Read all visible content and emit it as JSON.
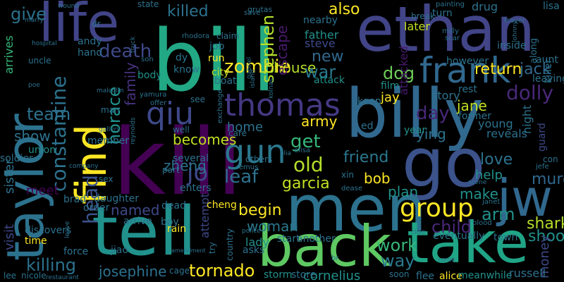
{
  "words": [
    {
      "text": "bill",
      "color": "#22a884"
    },
    {
      "text": "kill",
      "color": "#440154"
    },
    {
      "text": "billy",
      "color": "#31688e"
    },
    {
      "text": "ethan",
      "color": "#414487"
    },
    {
      "text": "go",
      "color": "#3b528b"
    },
    {
      "text": "men",
      "color": "#2c728e"
    },
    {
      "text": "tell",
      "color": "#21918c"
    },
    {
      "text": "back",
      "color": "#5ec962"
    },
    {
      "text": "take",
      "color": "#20a486"
    },
    {
      "text": "taylor",
      "color": "#2c728e"
    },
    {
      "text": "find",
      "color": "#fde725"
    },
    {
      "text": "life",
      "color": "#414487"
    },
    {
      "text": "jw",
      "color": "#31688e"
    },
    {
      "text": "frank",
      "color": "#31688e"
    },
    {
      "text": "thomas",
      "color": "#443983"
    },
    {
      "text": "qiu",
      "color": "#3e4989"
    },
    {
      "text": "group",
      "color": "#fde725"
    },
    {
      "text": "gun",
      "color": "#2a788e"
    },
    {
      "text": "constantine",
      "color": "#2c728e"
    },
    {
      "text": "head",
      "color": "#3b528b"
    },
    {
      "text": "horace",
      "color": "#21918c"
    },
    {
      "text": "family",
      "color": "#46327e"
    },
    {
      "text": "death",
      "color": "#3e4989"
    },
    {
      "text": "killed",
      "color": "#2c728e"
    },
    {
      "text": "house",
      "color": "#b5de2b"
    },
    {
      "text": "also",
      "color": "#fde725"
    },
    {
      "text": "return",
      "color": "#fde725"
    },
    {
      "text": "zombie",
      "color": "#fde725"
    },
    {
      "text": "stephen",
      "color": "#b5de2b"
    },
    {
      "text": "escape",
      "color": "#481a6c"
    },
    {
      "text": "new",
      "color": "#31688e"
    },
    {
      "text": "war",
      "color": "#2a788e"
    },
    {
      "text": "dog",
      "color": "#6ece58"
    },
    {
      "text": "jack",
      "color": "#31688e"
    },
    {
      "text": "dolly",
      "color": "#482878"
    },
    {
      "text": "team",
      "color": "#2c728e"
    },
    {
      "text": "show",
      "color": "#2c728e"
    },
    {
      "text": "named",
      "color": "#3e4989"
    },
    {
      "text": "jo",
      "color": "#3e4989"
    },
    {
      "text": "leaf",
      "color": "#2c728e"
    },
    {
      "text": "old",
      "color": "#b5de2b"
    },
    {
      "text": "get",
      "color": "#35b779"
    },
    {
      "text": "friend",
      "color": "#2a788e"
    },
    {
      "text": "bob",
      "color": "#fde725"
    },
    {
      "text": "garcia",
      "color": "#c2df23"
    },
    {
      "text": "begin",
      "color": "#fde725"
    },
    {
      "text": "woman",
      "color": "#2a788e"
    },
    {
      "text": "work",
      "color": "#35b779"
    },
    {
      "text": "way",
      "color": "#2a788e"
    },
    {
      "text": "killing",
      "color": "#2c728e"
    },
    {
      "text": "josephine",
      "color": "#2c728e"
    },
    {
      "text": "tornado",
      "color": "#fde725"
    },
    {
      "text": "shark",
      "color": "#b5de2b"
    },
    {
      "text": "shoot",
      "color": "#21918c"
    },
    {
      "text": "murder",
      "color": "#31688e"
    },
    {
      "text": "love",
      "color": "#2c728e"
    },
    {
      "text": "make",
      "color": "#21918c"
    },
    {
      "text": "arm",
      "color": "#21918c"
    },
    {
      "text": "child",
      "color": "#482878"
    },
    {
      "text": "plan",
      "color": "#21918c"
    },
    {
      "text": "zheng",
      "color": "#2c728e"
    },
    {
      "text": "becomes",
      "color": "#c2df23"
    },
    {
      "text": "army",
      "color": "#fde725"
    },
    {
      "text": "home",
      "color": "#2c728e"
    },
    {
      "text": "day",
      "color": "#482878"
    },
    {
      "text": "ying",
      "color": "#2c728e"
    },
    {
      "text": "jane",
      "color": "#c2df23"
    },
    {
      "text": "jay",
      "color": "#fde725"
    },
    {
      "text": "father",
      "color": "#21918c"
    },
    {
      "text": "steve",
      "color": "#3e4989"
    },
    {
      "text": "later",
      "color": "#c2df23"
    },
    {
      "text": "give",
      "color": "#2c728e"
    },
    {
      "text": "meet",
      "color": "#440154"
    },
    {
      "text": "visit",
      "color": "#3e4989"
    },
    {
      "text": "sister",
      "color": "#2c728e"
    },
    {
      "text": "arrives",
      "color": "#35b779"
    },
    {
      "text": "help",
      "color": "#21918c"
    },
    {
      "text": "money",
      "color": "#3e4989"
    },
    {
      "text": "night",
      "color": "#2c728e"
    },
    {
      "text": "cornelius",
      "color": "#21918c"
    },
    {
      "text": "attempt",
      "color": "#3e4989"
    },
    {
      "text": "lady",
      "color": "#21918c"
    },
    {
      "text": "attacked",
      "color": "#481a6c"
    },
    {
      "text": "story",
      "color": "#2c728e"
    },
    {
      "text": "rest",
      "color": "#2c728e"
    },
    {
      "text": "former",
      "color": "#2c728e"
    },
    {
      "text": "young",
      "color": "#2c728e"
    },
    {
      "text": "reveals",
      "color": "#2c728e"
    },
    {
      "text": "guard",
      "color": "#3e4989"
    },
    {
      "text": "killer",
      "color": "#2c728e"
    },
    {
      "text": "along",
      "color": "#2c728e"
    },
    {
      "text": "aunt",
      "color": "#2c728e"
    },
    {
      "text": "leaving",
      "color": "#2c728e"
    },
    {
      "text": "attack",
      "color": "#21918c"
    },
    {
      "text": "film",
      "color": "#21918c"
    },
    {
      "text": "keep",
      "color": "#2c728e"
    },
    {
      "text": "year",
      "color": "#21918c"
    },
    {
      "text": "ed",
      "color": "#2c728e"
    },
    {
      "text": "city",
      "color": "#c2df23"
    },
    {
      "text": "boat",
      "color": "#2c728e"
    },
    {
      "text": "run",
      "color": "#fde725"
    },
    {
      "text": "job",
      "color": "#2c728e"
    },
    {
      "text": "know",
      "color": "#2c728e"
    },
    {
      "text": "dy",
      "color": "#2c728e"
    },
    {
      "text": "body",
      "color": "#21918c"
    },
    {
      "text": "hand",
      "color": "#2c728e"
    },
    {
      "text": "andy",
      "color": "#2c728e"
    },
    {
      "text": "uncle",
      "color": "#2c728e"
    },
    {
      "text": "soldier",
      "color": "#2c728e"
    },
    {
      "text": "union",
      "color": "#21918c"
    },
    {
      "text": "member",
      "color": "#2c728e"
    },
    {
      "text": "daughter",
      "color": "#2c728e"
    },
    {
      "text": "order",
      "color": "#2c728e"
    },
    {
      "text": "brad",
      "color": "#2c728e"
    },
    {
      "text": "arrive",
      "color": "#2c728e"
    },
    {
      "text": "discovers",
      "color": "#2c728e"
    },
    {
      "text": "time",
      "color": "#fde725"
    },
    {
      "text": "force",
      "color": "#2c728e"
    },
    {
      "text": "jiao",
      "color": "#2c728e"
    },
    {
      "text": "rain",
      "color": "#fde725"
    },
    {
      "text": "boy",
      "color": "#2c728e"
    },
    {
      "text": "dead",
      "color": "#2c728e"
    },
    {
      "text": "cheng",
      "color": "#fde725"
    },
    {
      "text": "enters",
      "color": "#2c728e"
    },
    {
      "text": "several",
      "color": "#2c728e"
    },
    {
      "text": "part",
      "color": "#2c728e"
    },
    {
      "text": "storm",
      "color": "#21918c"
    },
    {
      "text": "store",
      "color": "#2c728e"
    },
    {
      "text": "start",
      "color": "#2c728e"
    },
    {
      "text": "another",
      "color": "#2c728e"
    },
    {
      "text": "asks",
      "color": "#2c728e"
    },
    {
      "text": "flee",
      "color": "#2c728e"
    },
    {
      "text": "alice",
      "color": "#fde725"
    },
    {
      "text": "meanwhile",
      "color": "#21918c"
    },
    {
      "text": "russell",
      "color": "#2c728e"
    },
    {
      "text": "eventually",
      "color": "#2c728e"
    },
    {
      "text": "town",
      "color": "#2c728e"
    },
    {
      "text": "nearby",
      "color": "#2c728e"
    },
    {
      "text": "however",
      "color": "#2c728e"
    },
    {
      "text": "inside",
      "color": "#2c728e"
    },
    {
      "text": "turn",
      "color": "#2c728e"
    },
    {
      "text": "drug",
      "color": "#2c728e"
    },
    {
      "text": "state",
      "color": "#2c728e"
    },
    {
      "text": "lisa",
      "color": "#2c728e"
    },
    {
      "text": "lee",
      "color": "#2c728e"
    },
    {
      "text": "nicole",
      "color": "#2c728e"
    },
    {
      "text": "soon",
      "color": "#2c728e"
    },
    {
      "text": "jefe",
      "color": "#2c728e"
    },
    {
      "text": "con",
      "color": "#2c728e"
    },
    {
      "text": "wound",
      "color": "#2c728e"
    },
    {
      "text": "dr",
      "color": "#2c728e"
    },
    {
      "text": "marry",
      "color": "#2c728e"
    },
    {
      "text": "hospital",
      "color": "#2c728e"
    },
    {
      "text": "poe",
      "color": "#2c728e"
    },
    {
      "text": "malcolm",
      "color": "#2c728e"
    },
    {
      "text": "man",
      "color": "#2c728e"
    },
    {
      "text": "gallery",
      "color": "#2c728e"
    },
    {
      "text": "reynolds",
      "color": "#2c728e"
    },
    {
      "text": "company",
      "color": "#2c728e"
    },
    {
      "text": "sex",
      "color": "#2c728e"
    },
    {
      "text": "others",
      "color": "#2c728e"
    },
    {
      "text": "remus",
      "color": "#2c728e"
    },
    {
      "text": "elisa",
      "color": "#2c728e"
    },
    {
      "text": "elia",
      "color": "#2c728e"
    },
    {
      "text": "xin",
      "color": "#2c728e"
    },
    {
      "text": "dease",
      "color": "#2c728e"
    },
    {
      "text": "scene",
      "color": "#2c728e"
    },
    {
      "text": "gabriel",
      "color": "#2c728e"
    },
    {
      "text": "island",
      "color": "#2c728e"
    },
    {
      "text": "kolnas",
      "color": "#2c728e"
    },
    {
      "text": "johnny",
      "color": "#2c728e"
    },
    {
      "text": "milly",
      "color": "#2c728e"
    },
    {
      "text": "scar",
      "color": "#2c728e"
    },
    {
      "text": "travel",
      "color": "#2c728e"
    },
    {
      "text": "painting",
      "color": "#2c728e"
    },
    {
      "text": "break",
      "color": "#2c728e"
    },
    {
      "text": "grutas",
      "color": "#2c728e"
    },
    {
      "text": "save",
      "color": "#2c728e"
    },
    {
      "text": "rhodora",
      "color": "#2c728e"
    },
    {
      "text": "claim",
      "color": "#2c728e"
    },
    {
      "text": "truck",
      "color": "#2c728e"
    },
    {
      "text": "son",
      "color": "#2c728e"
    },
    {
      "text": "yamura",
      "color": "#2c728e"
    },
    {
      "text": "offer",
      "color": "#2c728e"
    },
    {
      "text": "see",
      "color": "#2c728e"
    },
    {
      "text": "exchange",
      "color": "#2c728e"
    },
    {
      "text": "well",
      "color": "#2c728e"
    },
    {
      "text": "care",
      "color": "#2c728e"
    },
    {
      "text": "police",
      "color": "#2c728e"
    },
    {
      "text": "amendment",
      "color": "#2c728e"
    },
    {
      "text": "cage",
      "color": "#2c728e"
    },
    {
      "text": "country",
      "color": "#2c728e"
    },
    {
      "text": "try",
      "color": "#2c728e"
    },
    {
      "text": "restaurant",
      "color": "#2c728e"
    },
    {
      "text": "br",
      "color": "#2c728e"
    },
    {
      "text": "come",
      "color": "#2c728e"
    },
    {
      "text": "ride",
      "color": "#2c728e"
    },
    {
      "text": "blood",
      "color": "#2c728e"
    },
    {
      "text": "janet",
      "color": "#2c728e"
    },
    {
      "text": "leave",
      "color": "#2c728e"
    }
  ]
}
